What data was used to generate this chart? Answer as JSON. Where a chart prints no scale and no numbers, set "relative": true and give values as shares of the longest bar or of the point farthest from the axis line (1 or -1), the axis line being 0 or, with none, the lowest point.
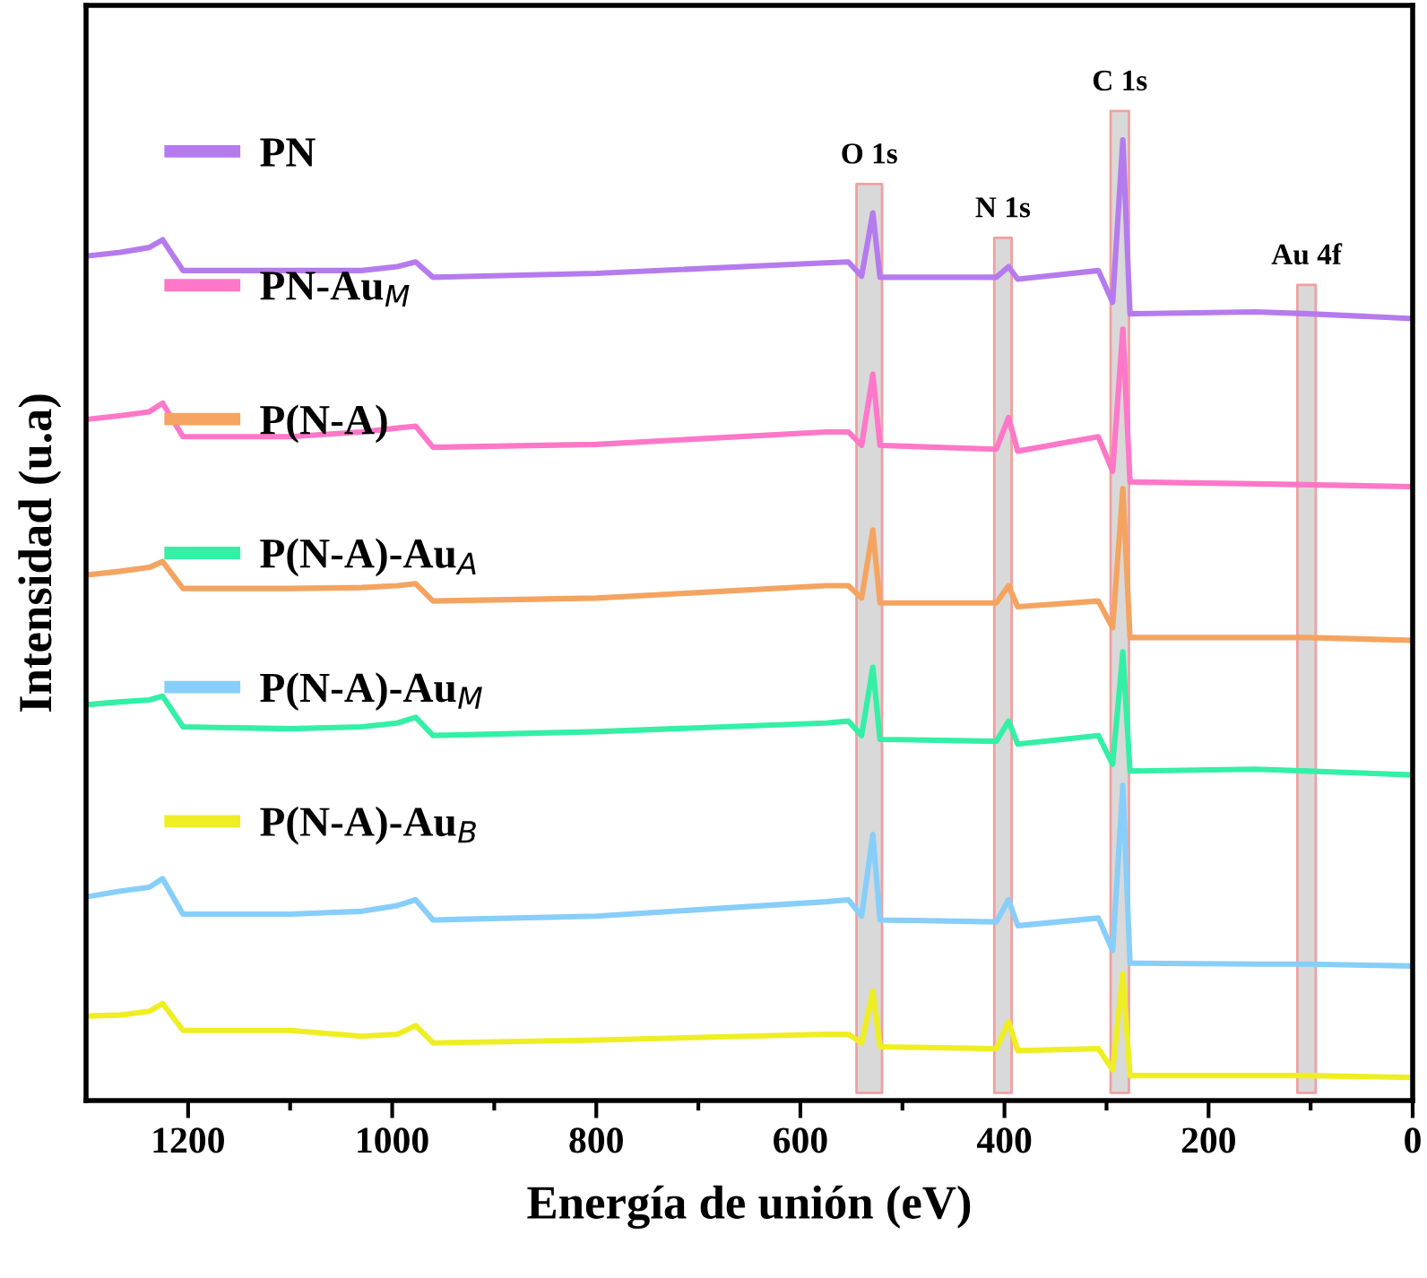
{
  "chart_data": {
    "type": "line",
    "relative": true,
    "xlabel": "Energía de unión (eV)",
    "ylabel": "Intensidad (u.a)",
    "x": [
      1300,
      1266,
      1238,
      1225,
      1205,
      1100,
      1030,
      995,
      977,
      960,
      800,
      575,
      553,
      540,
      529,
      522,
      408,
      396,
      387,
      308,
      294,
      284,
      277,
      154,
      102,
      0
    ],
    "xlim": [
      1300,
      0
    ],
    "xticks": [
      1200,
      1000,
      800,
      600,
      400,
      200,
      0
    ],
    "legend": "left",
    "grid": false,
    "marker": "none",
    "line_style": "solid",
    "series": [
      {
        "name": "PN",
        "color": "#b57bee",
        "values": [
          0.879,
          0.883,
          0.888,
          0.896,
          0.864,
          0.864,
          0.864,
          0.868,
          0.873,
          0.857,
          0.861,
          0.872,
          0.873,
          0.858,
          0.924,
          0.857,
          0.857,
          0.868,
          0.855,
          0.864,
          0.831,
          1.0,
          0.819,
          0.821,
          0.819,
          0.814
        ]
      },
      {
        "name": "PN-Au$_{M}$",
        "color": "#ff77c8",
        "values": [
          0.709,
          0.713,
          0.717,
          0.726,
          0.691,
          0.691,
          0.696,
          0.7,
          0.702,
          0.68,
          0.683,
          0.696,
          0.696,
          0.682,
          0.756,
          0.682,
          0.678,
          0.711,
          0.676,
          0.691,
          0.655,
          0.803,
          0.644,
          0.642,
          0.641,
          0.639
        ]
      },
      {
        "name": "P(N-A)",
        "color": "#f4a460",
        "values": [
          0.547,
          0.551,
          0.555,
          0.561,
          0.533,
          0.533,
          0.534,
          0.536,
          0.538,
          0.52,
          0.523,
          0.536,
          0.536,
          0.523,
          0.594,
          0.518,
          0.518,
          0.536,
          0.514,
          0.52,
          0.492,
          0.637,
          0.482,
          0.482,
          0.482,
          0.479
        ]
      },
      {
        "name": "P(N-A)-Au$_{A}$",
        "color": "#33f0a6",
        "values": [
          0.412,
          0.415,
          0.417,
          0.421,
          0.389,
          0.387,
          0.389,
          0.393,
          0.399,
          0.38,
          0.384,
          0.393,
          0.395,
          0.38,
          0.451,
          0.376,
          0.374,
          0.395,
          0.371,
          0.38,
          0.35,
          0.467,
          0.343,
          0.345,
          0.343,
          0.339
        ]
      },
      {
        "name": "P(N-A)-Au$_{M}$",
        "color": "#87cefa",
        "values": [
          0.212,
          0.218,
          0.222,
          0.231,
          0.194,
          0.194,
          0.197,
          0.203,
          0.209,
          0.188,
          0.192,
          0.207,
          0.209,
          0.192,
          0.277,
          0.188,
          0.186,
          0.209,
          0.182,
          0.19,
          0.156,
          0.328,
          0.143,
          0.142,
          0.142,
          0.14
        ]
      },
      {
        "name": "P(N-A)-Au$_{B}$",
        "color": "#eeee22",
        "values": [
          0.088,
          0.089,
          0.093,
          0.101,
          0.073,
          0.073,
          0.067,
          0.069,
          0.078,
          0.06,
          0.063,
          0.069,
          0.069,
          0.06,
          0.114,
          0.056,
          0.054,
          0.082,
          0.052,
          0.054,
          0.032,
          0.132,
          0.026,
          0.026,
          0.026,
          0.024
        ]
      }
    ],
    "bands": [
      {
        "axis": "x",
        "from": 545,
        "to": 520,
        "label": "O 1s",
        "color": "#d9d9d9"
      },
      {
        "axis": "x",
        "from": 410,
        "to": 393,
        "label": "N 1s",
        "color": "#d9d9d9"
      },
      {
        "axis": "x",
        "from": 296,
        "to": 278,
        "label": "C 1s",
        "color": "#d9d9d9"
      },
      {
        "axis": "x",
        "from": 113,
        "to": 95,
        "label": "Au 4f",
        "color": "#d9d9d9"
      }
    ]
  }
}
